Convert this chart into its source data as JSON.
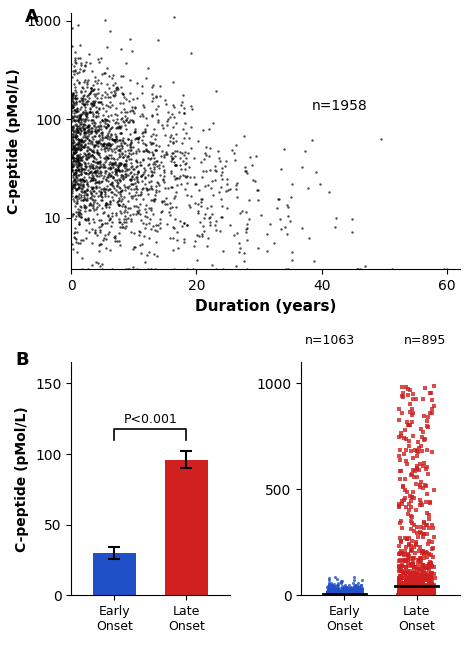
{
  "panel_A": {
    "n": 1958,
    "xlabel": "Duration (years)",
    "ylabel": "C-peptide (pMol/L)",
    "xlim": [
      0,
      62
    ],
    "ylim_log": [
      3,
      1200
    ],
    "xticks": [
      0,
      20,
      40,
      60
    ],
    "yticks_log": [
      10,
      100,
      1000
    ],
    "label": "A",
    "n_label": "n=1958"
  },
  "panel_B_bar": {
    "categories": [
      "Early\nOnset",
      "Late\nOnset"
    ],
    "values": [
      30,
      96
    ],
    "errors": [
      4,
      6
    ],
    "colors": [
      "#2050c8",
      "#d02020"
    ],
    "ylabel": "C-peptide (pMol/L)",
    "ylim": [
      0,
      165
    ],
    "yticks": [
      0,
      50,
      100,
      150
    ],
    "pvalue": "P<0.001",
    "label": "B"
  },
  "panel_B_dot": {
    "early_n": 1063,
    "late_n": 895,
    "early_color": "#2050c8",
    "late_color": "#d02020",
    "early_marker": "o",
    "late_marker": "s",
    "ylabel": "C-peptide (pMol/L)",
    "ylim": [
      0,
      1100
    ],
    "yticks": [
      0,
      500,
      1000
    ],
    "xlabel_early": "Early\nOnset",
    "xlabel_late": "Late\nOnset"
  },
  "background_color": "#ffffff"
}
